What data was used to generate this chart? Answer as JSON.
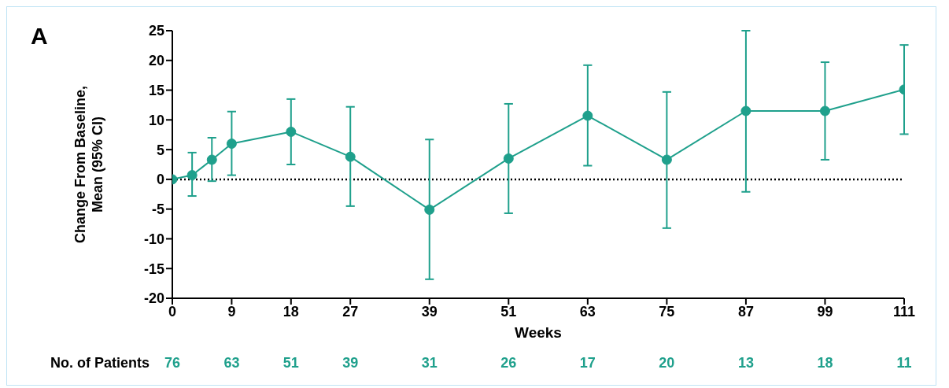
{
  "chart_data": {
    "type": "line",
    "title": "A",
    "xlabel": "Weeks",
    "ylabel": "Change From Baseline,\nMean (95% CI)",
    "x": [
      0,
      3,
      6,
      9,
      18,
      27,
      39,
      51,
      63,
      75,
      87,
      99,
      111
    ],
    "series": [
      {
        "color": "#1fa08c",
        "values": [
          0,
          0.7,
          3.3,
          6,
          8,
          3.8,
          -5.1,
          3.5,
          10.7,
          3.3,
          11.5,
          11.5,
          15.1
        ],
        "errors": [
          null,
          [
            -2.8,
            4.5
          ],
          [
            -0.3,
            7
          ],
          [
            0.7,
            11.4
          ],
          [
            2.5,
            13.5
          ],
          [
            -4.5,
            12.2
          ],
          [
            -16.8,
            6.7
          ],
          [
            -5.7,
            12.7
          ],
          [
            2.3,
            19.2
          ],
          [
            -8.2,
            14.7
          ],
          [
            -2.1,
            25
          ],
          [
            3.3,
            19.7
          ],
          [
            7.6,
            22.6
          ]
        ]
      }
    ],
    "xlim": [
      0,
      111
    ],
    "xticks": [
      0,
      9,
      18,
      27,
      39,
      51,
      63,
      75,
      87,
      99,
      111
    ],
    "ylim": [
      -20,
      25
    ],
    "yticks": [
      -20,
      -15,
      -10,
      -5,
      0,
      5,
      10,
      15,
      20,
      25
    ],
    "grid": false,
    "legend": false,
    "marker": "circle",
    "line_style": "solid",
    "ref_lines": [
      {
        "axis": "y",
        "value": 0,
        "line_style": "dotted",
        "color": "#000000"
      }
    ],
    "annotations": [
      "No. of Patients",
      "76",
      "63",
      "51",
      "39",
      "31",
      "26",
      "17",
      "20",
      "13",
      "18",
      "11"
    ]
  }
}
